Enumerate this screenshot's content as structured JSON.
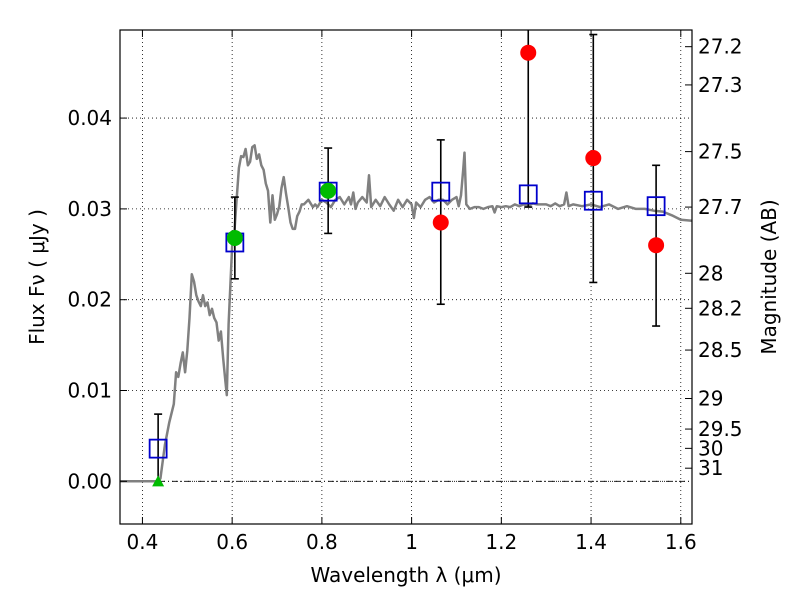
{
  "chart_data": {
    "type": "scatter",
    "xlabel": "Wavelength  λ (μm)",
    "ylabel": "Flux  Fν  ( μJy )",
    "y2label": "Magnitude (AB)",
    "xlim": [
      0.35,
      1.625
    ],
    "ylim": [
      -0.0047,
      0.0497
    ],
    "x_ticks": [
      "0.4",
      "0.6",
      "0.8",
      "1",
      "1.2",
      "1.4",
      "1.6"
    ],
    "y_ticks": [
      "0.00",
      "0.01",
      "0.02",
      "0.03",
      "0.04"
    ],
    "magnitude_ticks": [
      "27.2",
      "27.3",
      "27.5",
      "27.7",
      "28",
      "28.2",
      "28.5",
      "29",
      "29.5",
      "30",
      "31"
    ],
    "grid": true,
    "colors": {
      "model": "#808080",
      "observed_detection": "#00bb00",
      "observed_upper": "#ff0000",
      "model_photometry": "#0000cc",
      "error_bar": "#000000"
    },
    "series": [
      {
        "kind": "model-spectrum",
        "points": [
          [
            0.35,
            0.0
          ],
          [
            0.4,
            0.0
          ],
          [
            0.43,
            0.0
          ],
          [
            0.44,
            0.0003
          ],
          [
            0.45,
            0.004
          ],
          [
            0.46,
            0.0065
          ],
          [
            0.47,
            0.0085
          ],
          [
            0.475,
            0.012
          ],
          [
            0.48,
            0.0115
          ],
          [
            0.485,
            0.013
          ],
          [
            0.49,
            0.0142
          ],
          [
            0.495,
            0.012
          ],
          [
            0.5,
            0.0144
          ],
          [
            0.505,
            0.018
          ],
          [
            0.51,
            0.0228
          ],
          [
            0.515,
            0.022
          ],
          [
            0.52,
            0.0205
          ],
          [
            0.525,
            0.0198
          ],
          [
            0.53,
            0.0193
          ],
          [
            0.535,
            0.0205
          ],
          [
            0.54,
            0.0193
          ],
          [
            0.545,
            0.0197
          ],
          [
            0.55,
            0.0183
          ],
          [
            0.555,
            0.019
          ],
          [
            0.56,
            0.018
          ],
          [
            0.565,
            0.0175
          ],
          [
            0.57,
            0.0155
          ],
          [
            0.575,
            0.0165
          ],
          [
            0.58,
            0.0135
          ],
          [
            0.585,
            0.011
          ],
          [
            0.588,
            0.0095
          ],
          [
            0.592,
            0.0173
          ],
          [
            0.6,
            0.026
          ],
          [
            0.605,
            0.0275
          ],
          [
            0.61,
            0.031
          ],
          [
            0.615,
            0.0345
          ],
          [
            0.62,
            0.0358
          ],
          [
            0.625,
            0.0357
          ],
          [
            0.63,
            0.0366
          ],
          [
            0.635,
            0.0348
          ],
          [
            0.64,
            0.0352
          ],
          [
            0.645,
            0.0368
          ],
          [
            0.65,
            0.037
          ],
          [
            0.655,
            0.0355
          ],
          [
            0.66,
            0.036
          ],
          [
            0.665,
            0.0348
          ],
          [
            0.67,
            0.0343
          ],
          [
            0.675,
            0.0328
          ],
          [
            0.68,
            0.032
          ],
          [
            0.685,
            0.0285
          ],
          [
            0.69,
            0.0315
          ],
          [
            0.695,
            0.0288
          ],
          [
            0.7,
            0.0294
          ],
          [
            0.705,
            0.0303
          ],
          [
            0.71,
            0.0323
          ],
          [
            0.715,
            0.0335
          ],
          [
            0.72,
            0.0317
          ],
          [
            0.725,
            0.0302
          ],
          [
            0.73,
            0.0285
          ],
          [
            0.735,
            0.0278
          ],
          [
            0.74,
            0.0278
          ],
          [
            0.745,
            0.0292
          ],
          [
            0.75,
            0.0297
          ],
          [
            0.755,
            0.0305
          ],
          [
            0.76,
            0.0305
          ],
          [
            0.77,
            0.031
          ],
          [
            0.78,
            0.0302
          ],
          [
            0.785,
            0.0305
          ],
          [
            0.79,
            0.0302
          ],
          [
            0.8,
            0.031
          ],
          [
            0.81,
            0.0307
          ],
          [
            0.82,
            0.0302
          ],
          [
            0.83,
            0.031
          ],
          [
            0.84,
            0.0313
          ],
          [
            0.85,
            0.0305
          ],
          [
            0.86,
            0.0313
          ],
          [
            0.865,
            0.0305
          ],
          [
            0.87,
            0.0318
          ],
          [
            0.875,
            0.03
          ],
          [
            0.88,
            0.0307
          ],
          [
            0.89,
            0.0313
          ],
          [
            0.9,
            0.0307
          ],
          [
            0.905,
            0.0337
          ],
          [
            0.91,
            0.0302
          ],
          [
            0.92,
            0.031
          ],
          [
            0.93,
            0.0303
          ],
          [
            0.94,
            0.0313
          ],
          [
            0.95,
            0.0305
          ],
          [
            0.96,
            0.0298
          ],
          [
            0.97,
            0.031
          ],
          [
            0.98,
            0.0302
          ],
          [
            0.99,
            0.031
          ],
          [
            1.0,
            0.0305
          ],
          [
            1.005,
            0.029
          ],
          [
            1.01,
            0.0307
          ],
          [
            1.02,
            0.0302
          ],
          [
            1.03,
            0.031
          ],
          [
            1.04,
            0.0313
          ],
          [
            1.05,
            0.0307
          ],
          [
            1.06,
            0.031
          ],
          [
            1.07,
            0.031
          ],
          [
            1.08,
            0.0305
          ],
          [
            1.09,
            0.031
          ],
          [
            1.1,
            0.0313
          ],
          [
            1.105,
            0.0303
          ],
          [
            1.11,
            0.0315
          ],
          [
            1.115,
            0.0343
          ],
          [
            1.118,
            0.0362
          ],
          [
            1.122,
            0.0305
          ],
          [
            1.13,
            0.03
          ],
          [
            1.14,
            0.0302
          ],
          [
            1.15,
            0.0302
          ],
          [
            1.16,
            0.03
          ],
          [
            1.17,
            0.0302
          ],
          [
            1.18,
            0.0303
          ],
          [
            1.185,
            0.0296
          ],
          [
            1.19,
            0.0303
          ],
          [
            1.2,
            0.0302
          ],
          [
            1.21,
            0.0303
          ],
          [
            1.22,
            0.0302
          ],
          [
            1.23,
            0.0305
          ],
          [
            1.24,
            0.0303
          ],
          [
            1.25,
            0.0305
          ],
          [
            1.26,
            0.0303
          ],
          [
            1.27,
            0.0306
          ],
          [
            1.28,
            0.0305
          ],
          [
            1.29,
            0.0305
          ],
          [
            1.3,
            0.0305
          ],
          [
            1.31,
            0.0303
          ],
          [
            1.32,
            0.0306
          ],
          [
            1.33,
            0.0303
          ],
          [
            1.34,
            0.0305
          ],
          [
            1.345,
            0.0318
          ],
          [
            1.35,
            0.0303
          ],
          [
            1.36,
            0.0305
          ],
          [
            1.38,
            0.0303
          ],
          [
            1.4,
            0.0305
          ],
          [
            1.42,
            0.0302
          ],
          [
            1.44,
            0.0305
          ],
          [
            1.46,
            0.03
          ],
          [
            1.48,
            0.0303
          ],
          [
            1.5,
            0.03
          ],
          [
            1.52,
            0.03
          ],
          [
            1.54,
            0.0298
          ],
          [
            1.56,
            0.0297
          ],
          [
            1.58,
            0.0293
          ],
          [
            1.6,
            0.0288
          ],
          [
            1.625,
            0.0287
          ]
        ]
      },
      {
        "kind": "model-photometry",
        "points": [
          {
            "x": 0.435,
            "y": 0.0036
          },
          {
            "x": 0.606,
            "y": 0.0263
          },
          {
            "x": 0.814,
            "y": 0.0319
          },
          {
            "x": 1.065,
            "y": 0.0319
          },
          {
            "x": 1.26,
            "y": 0.0316
          },
          {
            "x": 1.405,
            "y": 0.0309
          },
          {
            "x": 1.545,
            "y": 0.0303
          }
        ]
      },
      {
        "kind": "observed-detection",
        "points": [
          {
            "x": 0.606,
            "y": 0.0268,
            "yerr_low": 0.0223,
            "yerr_high": 0.0313
          },
          {
            "x": 0.814,
            "y": 0.032,
            "yerr_low": 0.0273,
            "yerr_high": 0.0367
          }
        ]
      },
      {
        "kind": "observed-upper",
        "points": [
          {
            "x": 1.065,
            "y": 0.0285,
            "yerr_low": 0.0195,
            "yerr_high": 0.0376
          },
          {
            "x": 1.26,
            "y": 0.0472,
            "yerr_low": 0.0302,
            "yerr_high": 0.0497
          },
          {
            "x": 1.405,
            "y": 0.0356,
            "yerr_low": 0.0219,
            "yerr_high": 0.0492
          },
          {
            "x": 1.545,
            "y": 0.026,
            "yerr_low": 0.0171,
            "yerr_high": 0.0348
          }
        ]
      },
      {
        "kind": "non-detection",
        "points": [
          {
            "x": 0.435,
            "y": 0.0,
            "yerr_high": 0.0074
          }
        ]
      }
    ]
  }
}
